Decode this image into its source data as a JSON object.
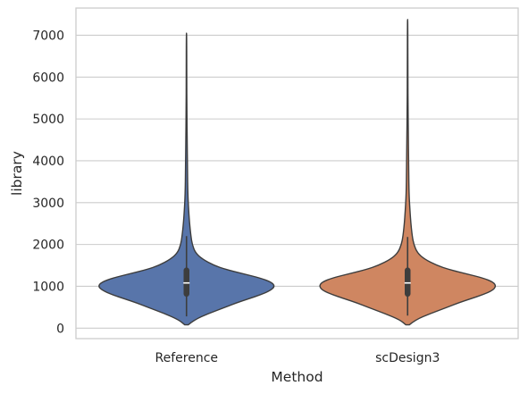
{
  "chart_data": {
    "type": "violin",
    "title": "",
    "xlabel": "Method",
    "ylabel": "library",
    "categories": [
      "Reference",
      "scDesign3"
    ],
    "ylim": [
      -250,
      7650
    ],
    "yticks": [
      0,
      1000,
      2000,
      3000,
      4000,
      5000,
      6000,
      7000
    ],
    "grid": true,
    "colors": {
      "Reference": "#5875aa",
      "scDesign3": "#cf8661",
      "outline": "#3d3d3d",
      "grid": "#cccccc",
      "box": "#3d3d3d",
      "median": "#ffffff"
    },
    "series": [
      {
        "name": "Reference",
        "min": 80,
        "q1": 820,
        "median": 1080,
        "q3": 1380,
        "max": 7050,
        "whisker_low": 280,
        "whisker_high": 2200,
        "density_profile": [
          [
            80,
            0.02
          ],
          [
            200,
            0.09
          ],
          [
            350,
            0.25
          ],
          [
            500,
            0.44
          ],
          [
            600,
            0.56
          ],
          [
            700,
            0.7
          ],
          [
            800,
            0.84
          ],
          [
            900,
            0.95
          ],
          [
            1000,
            1.0
          ],
          [
            1100,
            0.96
          ],
          [
            1200,
            0.83
          ],
          [
            1300,
            0.64
          ],
          [
            1400,
            0.45
          ],
          [
            1500,
            0.31
          ],
          [
            1650,
            0.18
          ],
          [
            1800,
            0.1
          ],
          [
            2000,
            0.065
          ],
          [
            2200,
            0.05
          ],
          [
            2500,
            0.035
          ],
          [
            2800,
            0.025
          ],
          [
            3200,
            0.015
          ],
          [
            3800,
            0.011
          ],
          [
            4500,
            0.008
          ],
          [
            5200,
            0.004
          ],
          [
            6000,
            0.003
          ],
          [
            7050,
            0.002
          ]
        ]
      },
      {
        "name": "scDesign3",
        "min": 80,
        "q1": 820,
        "median": 1080,
        "q3": 1380,
        "max": 7380,
        "whisker_low": 300,
        "whisker_high": 2180,
        "density_profile": [
          [
            80,
            0.02
          ],
          [
            200,
            0.09
          ],
          [
            350,
            0.26
          ],
          [
            500,
            0.45
          ],
          [
            600,
            0.57
          ],
          [
            700,
            0.71
          ],
          [
            800,
            0.85
          ],
          [
            900,
            0.96
          ],
          [
            1000,
            1.0
          ],
          [
            1100,
            0.97
          ],
          [
            1200,
            0.85
          ],
          [
            1300,
            0.66
          ],
          [
            1400,
            0.47
          ],
          [
            1500,
            0.33
          ],
          [
            1650,
            0.19
          ],
          [
            1800,
            0.11
          ],
          [
            2000,
            0.07
          ],
          [
            2200,
            0.052
          ],
          [
            2500,
            0.037
          ],
          [
            2800,
            0.027
          ],
          [
            3200,
            0.016
          ],
          [
            3800,
            0.012
          ],
          [
            4500,
            0.009
          ],
          [
            5200,
            0.005
          ],
          [
            6000,
            0.003
          ],
          [
            7380,
            0.002
          ]
        ]
      }
    ]
  }
}
